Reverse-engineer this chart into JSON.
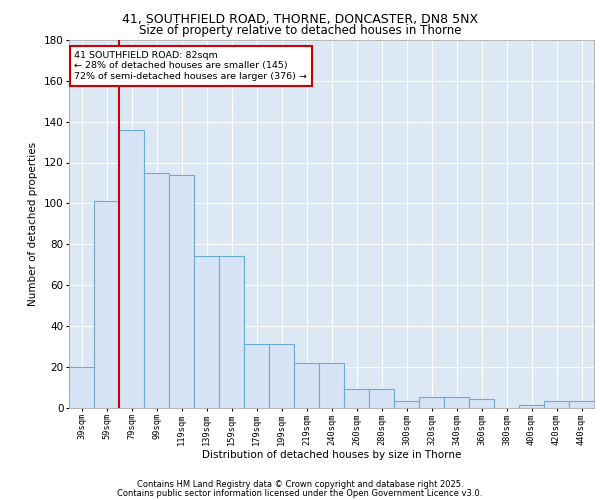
{
  "title1": "41, SOUTHFIELD ROAD, THORNE, DONCASTER, DN8 5NX",
  "title2": "Size of property relative to detached houses in Thorne",
  "xlabel": "Distribution of detached houses by size in Thorne",
  "ylabel": "Number of detached properties",
  "categories": [
    "39sqm",
    "59sqm",
    "79sqm",
    "99sqm",
    "119sqm",
    "139sqm",
    "159sqm",
    "179sqm",
    "199sqm",
    "219sqm",
    "240sqm",
    "260sqm",
    "280sqm",
    "300sqm",
    "320sqm",
    "340sqm",
    "360sqm",
    "380sqm",
    "400sqm",
    "420sqm",
    "440sqm"
  ],
  "bar_values": [
    20,
    101,
    136,
    115,
    114,
    74,
    74,
    31,
    31,
    22,
    22,
    9,
    9,
    3,
    5,
    5,
    4,
    0,
    1,
    3,
    3
  ],
  "vline_color": "#cc0000",
  "bar_color": "#d6e4f5",
  "bar_edge_color": "#6aaad4",
  "annotation_text": "41 SOUTHFIELD ROAD: 82sqm\n← 28% of detached houses are smaller (145)\n72% of semi-detached houses are larger (376) →",
  "annotation_box_color": "white",
  "annotation_box_edge_color": "#cc0000",
  "ylim": [
    0,
    180
  ],
  "yticks": [
    0,
    20,
    40,
    60,
    80,
    100,
    120,
    140,
    160,
    180
  ],
  "bg_color": "#dde8f5",
  "grid_color": "white",
  "footer1": "Contains HM Land Registry data © Crown copyright and database right 2025.",
  "footer2": "Contains public sector information licensed under the Open Government Licence v3.0."
}
